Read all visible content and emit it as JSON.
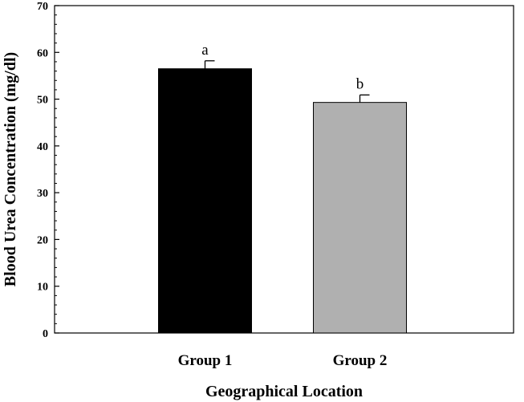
{
  "chart_data": {
    "type": "bar",
    "categories": [
      "Group 1",
      "Group 2"
    ],
    "values": [
      56.5,
      49.3
    ],
    "errors": [
      1.7,
      1.6
    ],
    "significance_labels": [
      "a",
      "b"
    ],
    "bar_colors": [
      "#000000",
      "#b0b0b0"
    ],
    "xlabel": "Geographical Location",
    "ylabel": "Blood Urea Concentration (mg/dl)",
    "ylim": [
      0,
      70
    ],
    "yticks": [
      0,
      10,
      20,
      30,
      40,
      50,
      60,
      70
    ],
    "grid": false,
    "legend": "none"
  }
}
